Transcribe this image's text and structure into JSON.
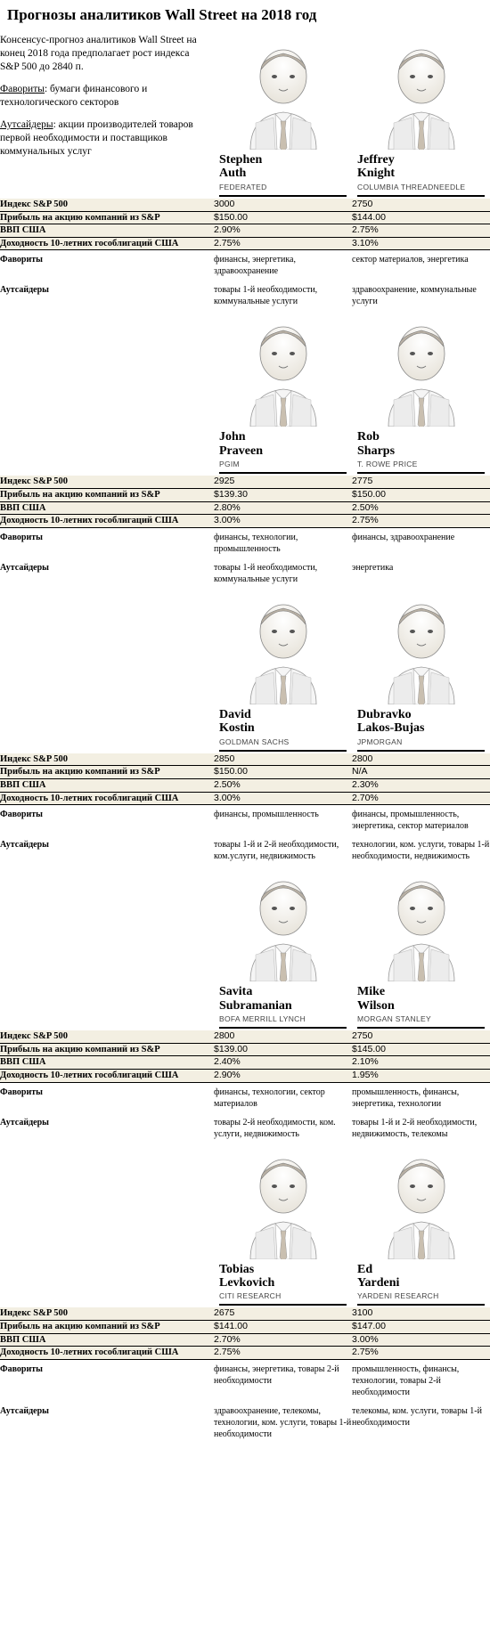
{
  "title": "Прогнозы аналитиков Wall Street на 2018 год",
  "intro": {
    "p1": "Консенсус-прогноз аналитиков Wall Street на конец 2018 года предполагает рост индекса S&P 500 до 2840 п.",
    "fav_label": "Фавориты",
    "fav_text": ": бумаги финансового и технологического секторов",
    "out_label": "Аутсайдеры",
    "out_text": ": акции производителей товаров первой необходимости и поставщиков коммунальных услуг"
  },
  "labels": {
    "sp500": "Индекс S&P 500",
    "eps": "Прибыль на акцию компаний из S&P",
    "gdp": "ВВП США",
    "bond": "Доходность 10-летних гособлигаций США",
    "fav": "Фавориты",
    "out": "Аутсайдеры"
  },
  "colors": {
    "stripe": "#f3efe2",
    "border": "#000000",
    "text": "#000000",
    "bg": "#ffffff"
  },
  "rows": [
    {
      "a": {
        "name_first": "Stephen",
        "name_last": "Auth",
        "firm": "FEDERATED",
        "sp500": "3000",
        "eps": "$150.00",
        "gdp": "2.90%",
        "bond": "2.75%",
        "fav": "финансы, энергетика, здравоохранение",
        "out": "товары 1-й необходимости, коммунальные услуги"
      },
      "b": {
        "name_first": "Jeffrey",
        "name_last": "Knight",
        "firm": "COLUMBIA THREADNEEDLE",
        "sp500": "2750",
        "eps": "$144.00",
        "gdp": "2.75%",
        "bond": "3.10%",
        "fav": "сектор материалов, энергетика",
        "out": "здравоохранение, коммунальные услуги"
      }
    },
    {
      "a": {
        "name_first": "John",
        "name_last": "Praveen",
        "firm": "PGIM",
        "sp500": "2925",
        "eps": "$139.30",
        "gdp": "2.80%",
        "bond": "3.00%",
        "fav": "финансы, технологии, промышленность",
        "out": "товары 1-й необходимости, коммунальные услуги"
      },
      "b": {
        "name_first": "Rob",
        "name_last": "Sharps",
        "firm": "T. ROWE PRICE",
        "sp500": "2775",
        "eps": "$150.00",
        "gdp": "2.50%",
        "bond": "2.75%",
        "fav": "финансы, здравоохранение",
        "out": "энергетика"
      }
    },
    {
      "a": {
        "name_first": "David",
        "name_last": "Kostin",
        "firm": "GOLDMAN SACHS",
        "sp500": "2850",
        "eps": "$150.00",
        "gdp": "2.50%",
        "bond": "3.00%",
        "fav": "финансы, промышленность",
        "out": "товары 1-й и 2-й необходимости, ком.услуги, недвижимость"
      },
      "b": {
        "name_first": "Dubravko",
        "name_last": "Lakos-Bujas",
        "firm": "JPMORGAN",
        "sp500": "2800",
        "eps": "N/A",
        "gdp": "2.30%",
        "bond": "2.70%",
        "fav": "финансы, промышленность, энергетика, сектор материалов",
        "out": "технологии, ком. услуги, товары 1-й необходимости, недвижимость"
      }
    },
    {
      "a": {
        "name_first": "Savita",
        "name_last": "Subramanian",
        "firm": "BofA MERRILL LYNCH",
        "sp500": "2800",
        "eps": "$139.00",
        "gdp": "2.40%",
        "bond": "2.90%",
        "fav": "финансы, технологии, сектор материалов",
        "out": "товары 2-й необходимости, ком. услуги, недвижимость"
      },
      "b": {
        "name_first": "Mike",
        "name_last": "Wilson",
        "firm": "MORGAN STANLEY",
        "sp500": "2750",
        "eps": "$145.00",
        "gdp": "2.10%",
        "bond": "1.95%",
        "fav": "промышленность, финансы, энергетика, технологии",
        "out": "товары 1-й и 2-й необходимости, недвижимость, телекомы"
      }
    },
    {
      "a": {
        "name_first": "Tobias",
        "name_last": "Levkovich",
        "firm": "CITI RESEARCH",
        "sp500": "2675",
        "eps": "$141.00",
        "gdp": "2.70%",
        "bond": "2.75%",
        "fav": "финансы, энергетика, товары 2-й необходимости",
        "out": "здравоохранение, телекомы, технологии, ком. услуги, товары 1-й необходимости"
      },
      "b": {
        "name_first": "Ed",
        "name_last": "Yardeni",
        "firm": "YARDENI RESEARCH",
        "sp500": "3100",
        "eps": "$147.00",
        "gdp": "3.00%",
        "bond": "2.75%",
        "fav": "промышленность, финансы, технологии, товары 2-й необходимости",
        "out": "телекомы, ком. услуги, товары 1-й необходимости"
      }
    }
  ]
}
